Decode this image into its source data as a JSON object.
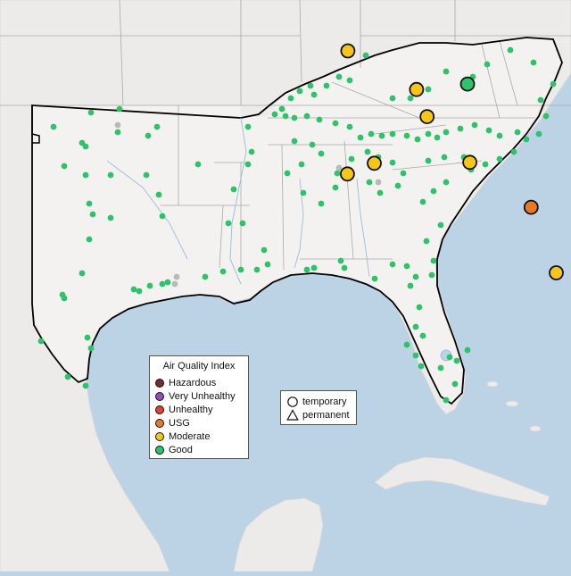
{
  "legend": {
    "title": "Air Quality Index",
    "categories": [
      {
        "label": "Hazardous",
        "color": "#7e2a2a"
      },
      {
        "label": "Very Unhealthy",
        "color": "#8f52b8"
      },
      {
        "label": "Unhealthy",
        "color": "#e0442e"
      },
      {
        "label": "USG",
        "color": "#e87a26"
      },
      {
        "label": "Moderate",
        "color": "#f5c518"
      },
      {
        "label": "Good",
        "color": "#2dc36a"
      }
    ]
  },
  "type_legend": {
    "items": [
      {
        "label": "temporary",
        "icon": "circle-icon"
      },
      {
        "label": "permanent",
        "icon": "triangle-icon"
      }
    ]
  },
  "colors": {
    "water": "#bcd3e6",
    "land": "#ecebe9",
    "region": "#f4f2f0",
    "good": "#2dc36a",
    "moderate": "#f5c518",
    "usg": "#e87a26",
    "inactive": "#b9b9b9"
  },
  "monitors": {
    "large": [
      {
        "lon": -90.05,
        "lat": 35.15,
        "aqi": "Moderate"
      },
      {
        "lon": -86.8,
        "lat": 33.52,
        "aqi": "Moderate"
      },
      {
        "lon": -86.3,
        "lat": 32.37,
        "aqi": "Moderate"
      },
      {
        "lon": -84.39,
        "lat": 33.75,
        "aqi": "Good"
      },
      {
        "lon": -90.07,
        "lat": 29.95,
        "aqi": "Moderate"
      },
      {
        "lon": -88.8,
        "lat": 30.4,
        "aqi": "Moderate"
      },
      {
        "lon": -84.28,
        "lat": 30.44,
        "aqi": "Moderate"
      },
      {
        "lon": -81.38,
        "lat": 28.54,
        "aqi": "USG"
      },
      {
        "lon": -80.19,
        "lat": 25.77,
        "aqi": "Moderate"
      }
    ]
  }
}
